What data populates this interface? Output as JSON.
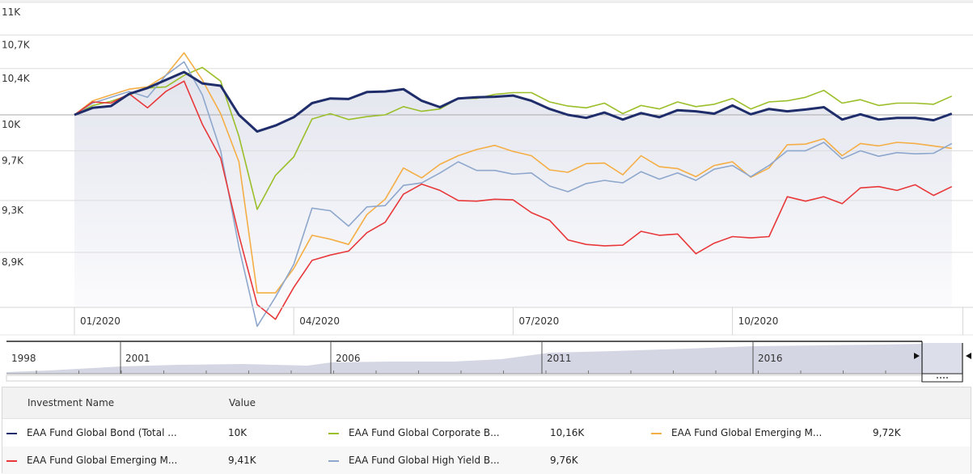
{
  "chart_data": {
    "type": "line",
    "title": "",
    "xlabel": "",
    "ylabel": "",
    "y_scale": "log",
    "ylim": [
      8450,
      11000
    ],
    "y_ticks": [
      {
        "value": 11000,
        "label": "11K"
      },
      {
        "value": 10700,
        "label": "10,7K"
      },
      {
        "value": 10400,
        "label": "10,4K"
      },
      {
        "value": 10000,
        "label": "10K"
      },
      {
        "value": 9700,
        "label": "9,7K"
      },
      {
        "value": 9300,
        "label": "9,3K"
      },
      {
        "value": 8900,
        "label": "8,9K"
      }
    ],
    "x_ticks": [
      {
        "index": 0,
        "label": "01/2020"
      },
      {
        "index": 12,
        "label": "04/2020"
      },
      {
        "index": 24,
        "label": "07/2020"
      },
      {
        "index": 36,
        "label": "10/2020"
      },
      {
        "index": 48.6,
        "label": ""
      }
    ],
    "grid": true,
    "legend_position": "bottom",
    "series": [
      {
        "name": "EAA Fund Global Bond (Total ...",
        "value_label": "10K",
        "color": "#1f2d6b",
        "width": 3,
        "values": [
          10000,
          10060,
          10075,
          10180,
          10230,
          10300,
          10370,
          10270,
          10250,
          10000,
          9860,
          9910,
          9980,
          10100,
          10140,
          10135,
          10195,
          10200,
          10220,
          10120,
          10065,
          10140,
          10150,
          10155,
          10165,
          10120,
          10050,
          10000,
          9975,
          10020,
          9960,
          10015,
          9980,
          10040,
          10030,
          10010,
          10080,
          10005,
          10050,
          10030,
          10045,
          10065,
          9960,
          10005,
          9960,
          9975,
          9975,
          9955,
          10010
        ]
      },
      {
        "name": "EAA Fund Global Corporate B...",
        "value_label": "10,16K",
        "color": "#9bbf2a",
        "width": 1.6,
        "values": [
          10000,
          10080,
          10115,
          10170,
          10230,
          10240,
          10340,
          10410,
          10290,
          9820,
          9230,
          9500,
          9650,
          9965,
          10010,
          9960,
          9985,
          10000,
          10070,
          10030,
          10050,
          10140,
          10140,
          10175,
          10190,
          10190,
          10110,
          10075,
          10060,
          10100,
          10010,
          10080,
          10050,
          10110,
          10070,
          10090,
          10140,
          10050,
          10110,
          10120,
          10150,
          10210,
          10100,
          10130,
          10080,
          10100,
          10100,
          10090,
          10160
        ]
      },
      {
        "name": "EAA Fund Global Emerging M...",
        "value_label": "9,72K",
        "color": "#f5ae45",
        "width": 1.6,
        "values": [
          10000,
          10120,
          10170,
          10220,
          10240,
          10340,
          10540,
          10300,
          10010,
          9610,
          8600,
          8600,
          8780,
          9030,
          9000,
          8960,
          9190,
          9310,
          9560,
          9480,
          9590,
          9660,
          9710,
          9745,
          9695,
          9660,
          9545,
          9525,
          9595,
          9600,
          9505,
          9660,
          9570,
          9555,
          9490,
          9580,
          9610,
          9485,
          9560,
          9750,
          9755,
          9800,
          9660,
          9760,
          9740,
          9770,
          9760,
          9740,
          9720
        ]
      },
      {
        "name": "EAA Fund Global Emerging M...",
        "value_label": "9,41K",
        "color": "#e8383a",
        "width": 1.6,
        "values": [
          10000,
          10110,
          10100,
          10180,
          10060,
          10200,
          10290,
          9920,
          9640,
          9030,
          8515,
          8410,
          8640,
          8840,
          8880,
          8910,
          9050,
          9130,
          9350,
          9430,
          9380,
          9300,
          9295,
          9310,
          9305,
          9205,
          9145,
          8995,
          8960,
          8950,
          8955,
          9060,
          9030,
          9040,
          8890,
          8970,
          9020,
          9010,
          9020,
          9330,
          9295,
          9330,
          9275,
          9400,
          9410,
          9380,
          9425,
          9340,
          9410
        ]
      },
      {
        "name": "EAA Fund Global High Yield B...",
        "value_label": "9,76K",
        "color": "#8ea7cc",
        "width": 1.6,
        "values": [
          10000,
          10100,
          10150,
          10200,
          10150,
          10340,
          10460,
          10170,
          9700,
          8940,
          8360,
          8570,
          8810,
          9240,
          9220,
          9100,
          9250,
          9260,
          9420,
          9440,
          9520,
          9610,
          9540,
          9540,
          9510,
          9520,
          9415,
          9370,
          9435,
          9460,
          9440,
          9530,
          9470,
          9520,
          9460,
          9550,
          9580,
          9490,
          9580,
          9700,
          9700,
          9770,
          9635,
          9700,
          9655,
          9685,
          9675,
          9680,
          9760
        ]
      }
    ]
  },
  "navigator": {
    "year_labels": [
      "1998",
      "2001",
      "2006",
      "2011",
      "2016"
    ],
    "handle_grip": "grip-icon",
    "left_arrow": "arrow-right-icon",
    "right_arrow": "arrow-left-icon"
  },
  "legend": {
    "header_name": "Investment Name",
    "header_value": "Value"
  }
}
